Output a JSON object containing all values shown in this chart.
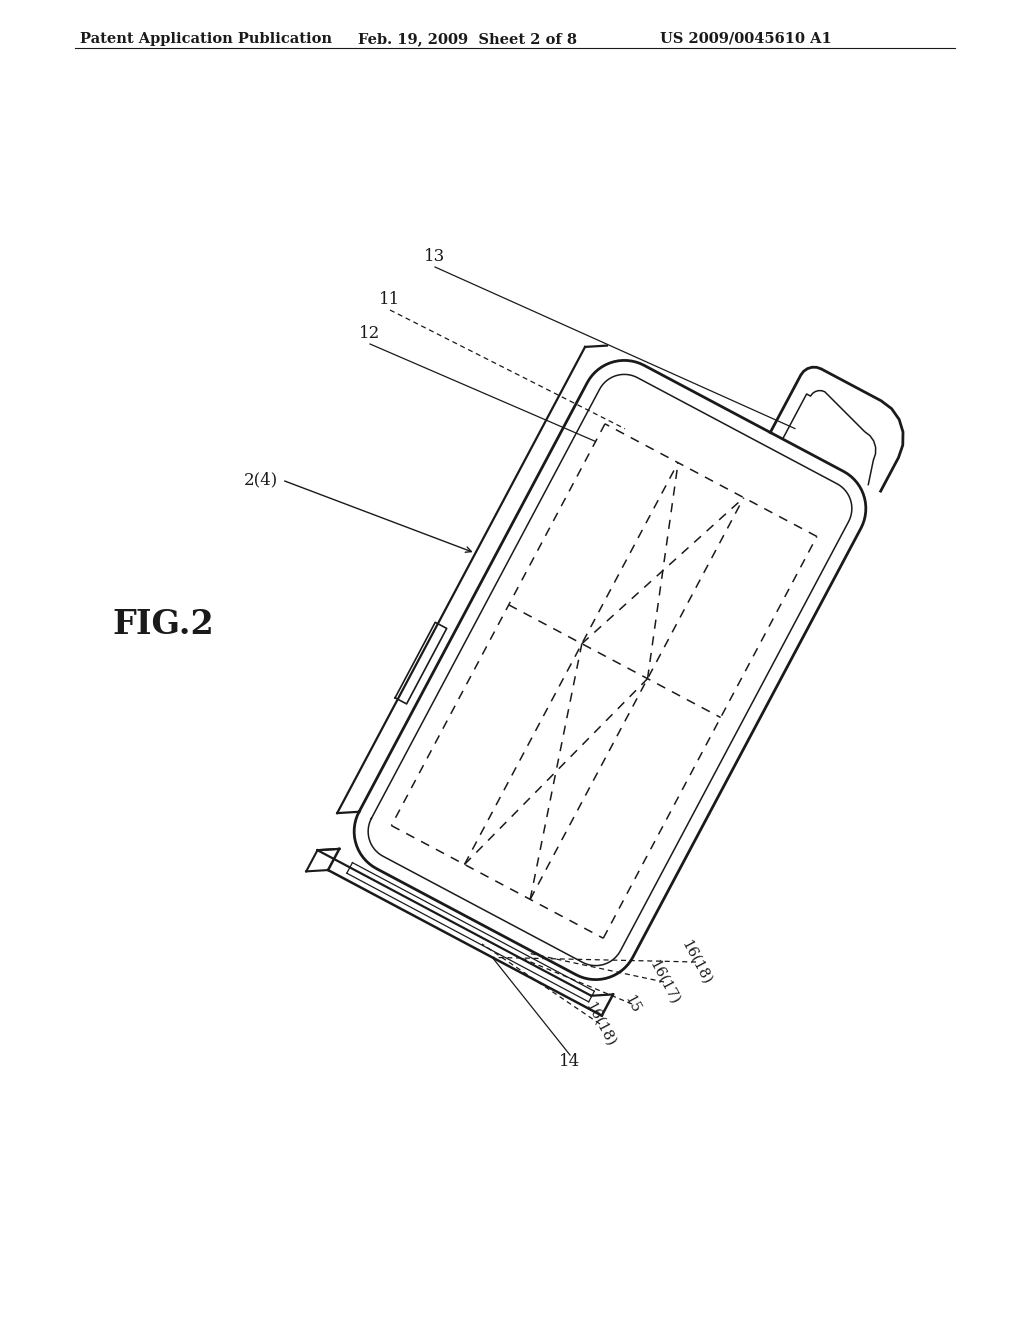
{
  "bg_color": "#ffffff",
  "header_left": "Patent Application Publication",
  "header_center": "Feb. 19, 2009  Sheet 2 of 8",
  "header_right": "US 2009/0045610 A1",
  "fig_label": "FIG.2",
  "line_color": "#1a1a1a"
}
